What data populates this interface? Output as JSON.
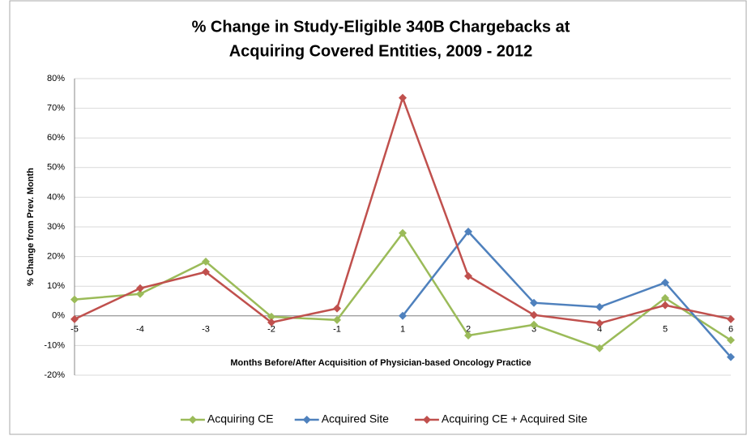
{
  "chart_data": {
    "type": "line",
    "title": [
      "% Change in Study-Eligible 340B Chargebacks at",
      "Acquiring Covered Entities, 2009 - 2012"
    ],
    "x_label": "Months Before/After Acquisition of Physician-based Oncology Practice",
    "y_label": "% Change from Prev. Month",
    "categories": [
      "-5",
      "-4",
      "-3",
      "-2",
      "-1",
      "1",
      "2",
      "3",
      "4",
      "5",
      "6"
    ],
    "series": [
      {
        "name": "Acquiring CE",
        "color": "#9bbb59",
        "values": [
          5.5,
          7.4,
          18.3,
          -0.3,
          -1.4,
          27.9,
          -6.6,
          -3,
          -10.9,
          6,
          -8.2
        ]
      },
      {
        "name": "Acquired Site",
        "color": "#4f81bd",
        "values": [
          null,
          null,
          null,
          null,
          null,
          0,
          28.4,
          4.4,
          3,
          11.2,
          -13.9
        ]
      },
      {
        "name": "Acquiring CE + Acquired Site",
        "color": "#c0504d",
        "values": [
          -1.1,
          9.3,
          14.8,
          -2.2,
          2.5,
          73.5,
          13.4,
          0.3,
          -2.5,
          3.6,
          -1.1
        ]
      }
    ],
    "ylim": [
      -20,
      80
    ],
    "yticks": [
      {
        "value": -20,
        "label": "-20%"
      },
      {
        "value": -10,
        "label": "-10%"
      },
      {
        "value": 0,
        "label": "0%"
      },
      {
        "value": 10,
        "label": "10%"
      },
      {
        "value": 20,
        "label": "20%"
      },
      {
        "value": 30,
        "label": "30%"
      },
      {
        "value": 40,
        "label": "40%"
      },
      {
        "value": 50,
        "label": "50%"
      },
      {
        "value": 60,
        "label": "60%"
      },
      {
        "value": 70,
        "label": "70%"
      },
      {
        "value": 80,
        "label": "80%"
      }
    ],
    "grid": true,
    "legend": "bottom"
  }
}
